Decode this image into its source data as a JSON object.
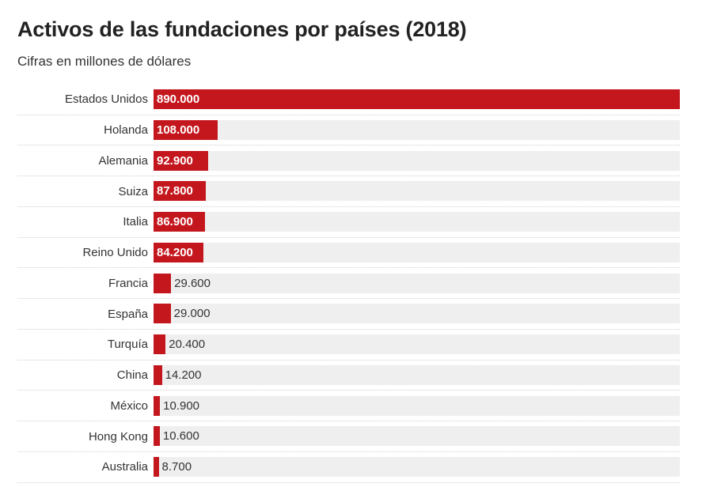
{
  "chart_data": {
    "type": "bar",
    "orientation": "horizontal",
    "title": "Activos de las fundaciones por países (2018)",
    "subtitle": "Cifras en millones de dólares",
    "xlim": [
      0,
      890000
    ],
    "colors": {
      "bar": "#c4171d",
      "track": "#efefef"
    },
    "categories": [
      "Estados Unidos",
      "Holanda",
      "Alemania",
      "Suiza",
      "Italia",
      "Reino Unido",
      "Francia",
      "España",
      "Turquía",
      "China",
      "México",
      "Hong Kong",
      "Australia"
    ],
    "values": [
      890000,
      108000,
      92900,
      87800,
      86900,
      84200,
      29600,
      29000,
      20400,
      14200,
      10900,
      10600,
      8700
    ],
    "value_labels": [
      "890.000",
      "108.000",
      "92.900",
      "87.800",
      "86.900",
      "84.200",
      "29.600",
      "29.000",
      "20.400",
      "14.200",
      "10.900",
      "10.600",
      "8.700"
    ]
  }
}
